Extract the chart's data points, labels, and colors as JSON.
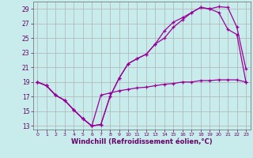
{
  "xlabel": "Windchill (Refroidissement éolien,°C)",
  "bg_color": "#c8ecec",
  "grid_color": "#b0b0b0",
  "line_color": "#990099",
  "xlim": [
    -0.5,
    23.5
  ],
  "ylim": [
    12.5,
    30.0
  ],
  "yticks": [
    13,
    15,
    17,
    19,
    21,
    23,
    25,
    27,
    29
  ],
  "xticks": [
    0,
    1,
    2,
    3,
    4,
    5,
    6,
    7,
    8,
    9,
    10,
    11,
    12,
    13,
    14,
    15,
    16,
    17,
    18,
    19,
    20,
    21,
    22,
    23
  ],
  "series": [
    {
      "x": [
        0,
        1,
        2,
        3,
        4,
        5,
        6,
        7,
        8,
        9,
        10,
        11,
        12,
        13,
        14,
        15,
        16,
        17,
        18,
        19,
        20,
        21,
        22,
        23
      ],
      "y": [
        19.0,
        18.5,
        17.2,
        16.5,
        15.2,
        14.0,
        13.0,
        13.2,
        17.0,
        19.5,
        21.5,
        22.2,
        22.8,
        24.2,
        26.0,
        27.2,
        27.8,
        28.5,
        29.2,
        29.0,
        29.3,
        29.2,
        26.5,
        20.8
      ]
    },
    {
      "x": [
        0,
        1,
        2,
        3,
        4,
        5,
        6,
        7,
        8,
        9,
        10,
        11,
        12,
        13,
        14,
        15,
        16,
        17,
        18,
        19,
        20,
        21,
        22,
        23
      ],
      "y": [
        19.0,
        18.5,
        17.2,
        16.5,
        15.2,
        14.0,
        13.0,
        13.2,
        17.0,
        19.5,
        21.5,
        22.2,
        22.8,
        24.2,
        25.0,
        26.5,
        27.5,
        28.5,
        29.2,
        29.0,
        28.5,
        26.2,
        25.5,
        19.0
      ]
    },
    {
      "x": [
        0,
        1,
        2,
        3,
        4,
        5,
        6,
        7,
        8,
        9,
        10,
        11,
        12,
        13,
        14,
        15,
        16,
        17,
        18,
        19,
        20,
        21,
        22,
        23
      ],
      "y": [
        19.0,
        18.5,
        17.2,
        16.5,
        15.2,
        14.0,
        13.0,
        17.2,
        17.5,
        17.8,
        18.0,
        18.2,
        18.3,
        18.5,
        18.7,
        18.8,
        19.0,
        19.0,
        19.2,
        19.2,
        19.3,
        19.3,
        19.3,
        19.0
      ]
    }
  ],
  "spine_color": "#666666",
  "tick_color": "#660066",
  "xlabel_color": "#660066",
  "xlabel_fontsize": 6.0,
  "ytick_fontsize": 5.5,
  "xtick_fontsize": 4.5
}
